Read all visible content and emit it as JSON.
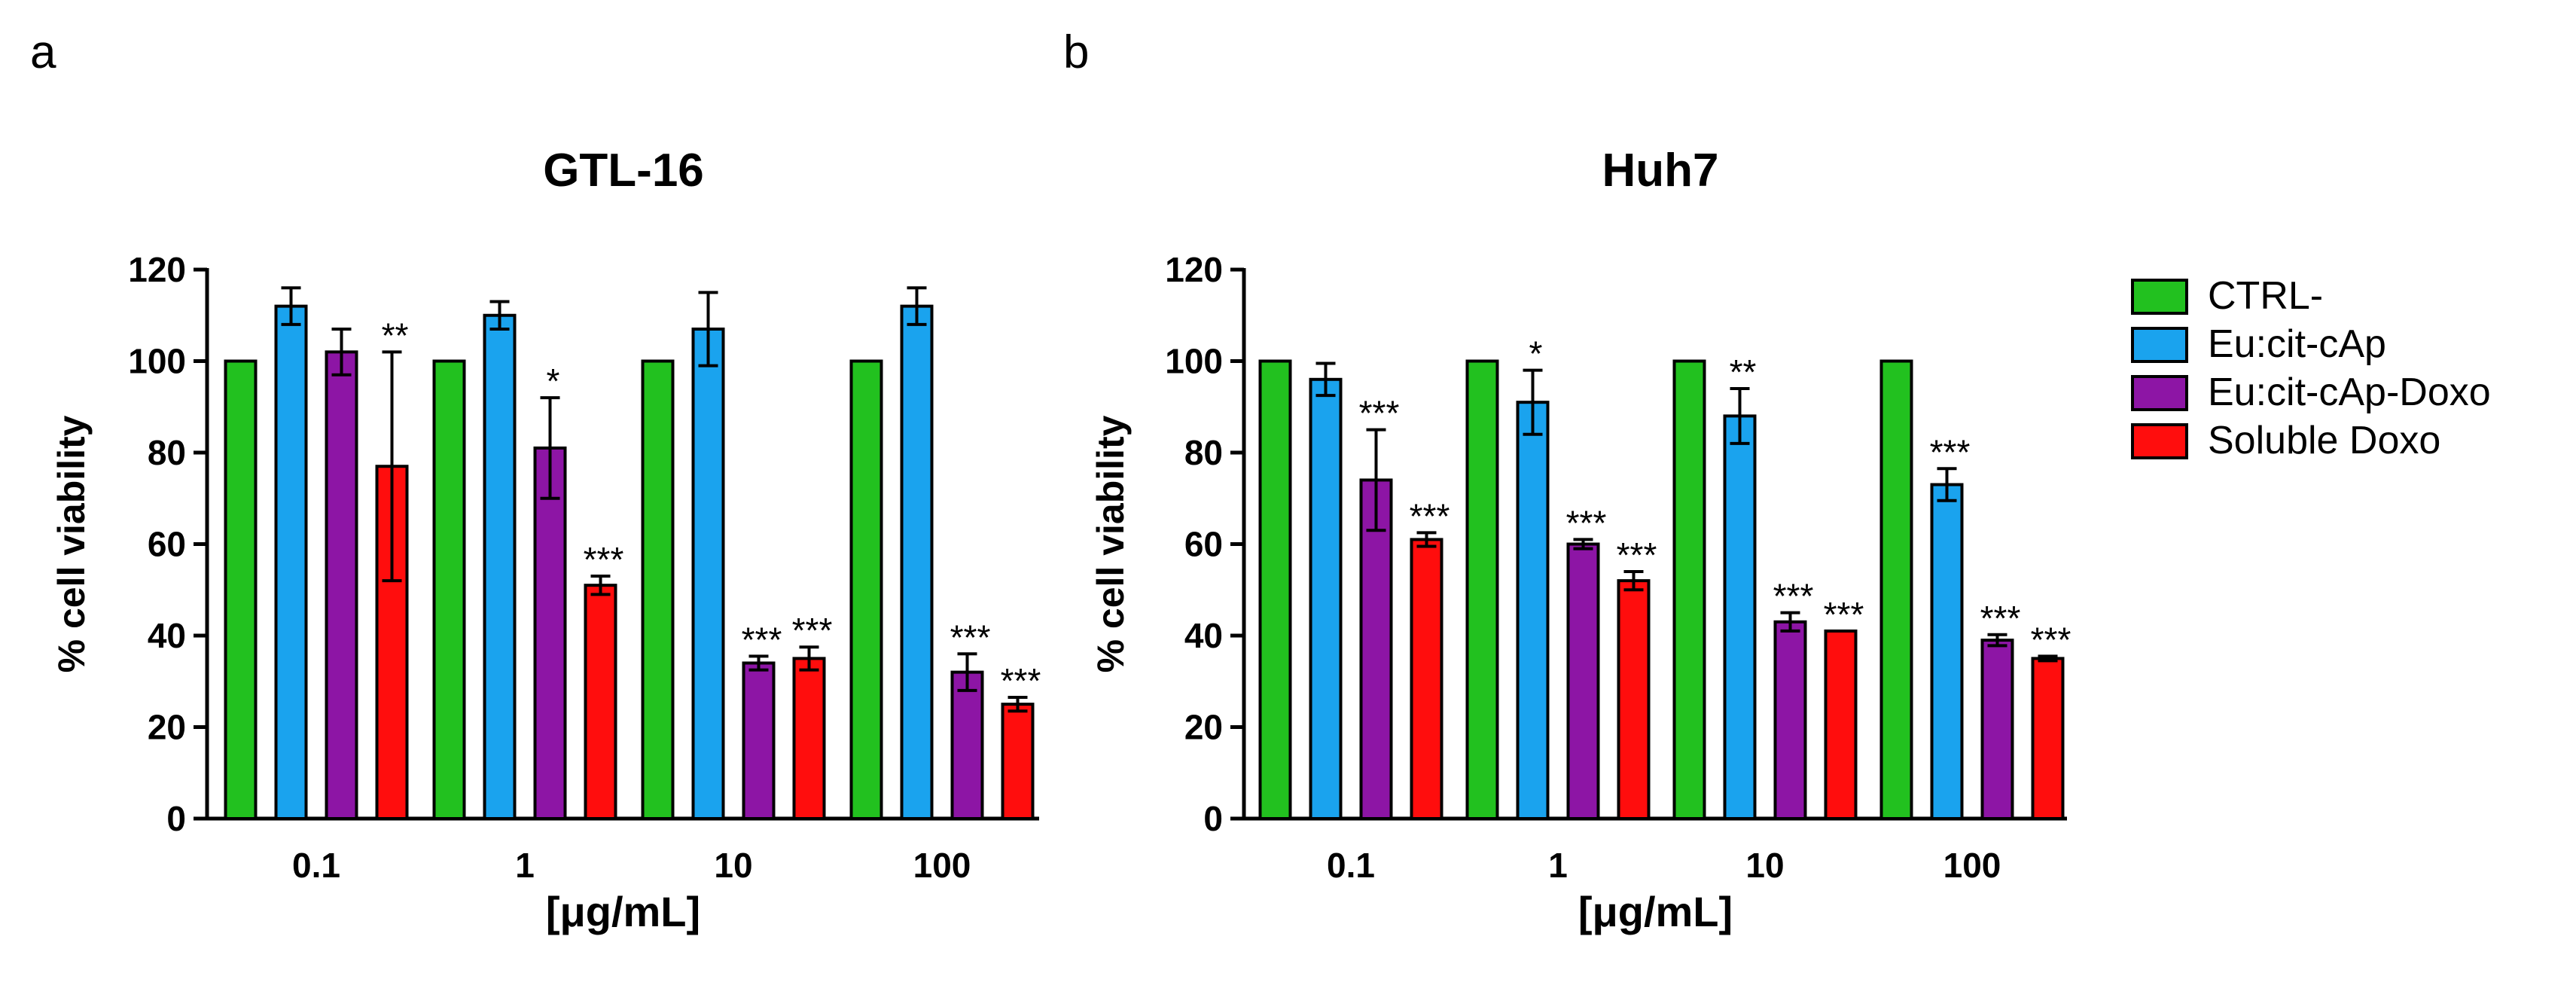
{
  "chart_data": [
    {
      "type": "bar",
      "panel": "a",
      "title": "GTL-16",
      "xlabel": "[μg/mL]",
      "ylabel": "% cell viability",
      "ylim": [
        0,
        120
      ],
      "yticks": [
        0,
        20,
        40,
        60,
        80,
        100,
        120
      ],
      "categories": [
        "0.1",
        "1",
        "10",
        "100"
      ],
      "series": [
        {
          "name": "CTRL-",
          "color": "#22c11f",
          "values": [
            100,
            100,
            100,
            100
          ],
          "errors": [
            0,
            0,
            0,
            0
          ],
          "significance": [
            "",
            "",
            "",
            ""
          ]
        },
        {
          "name": "Eu:cit-cAp",
          "color": "#1aa3ee",
          "values": [
            112,
            110,
            107,
            112
          ],
          "errors": [
            4,
            3,
            8,
            4
          ],
          "significance": [
            "",
            "",
            "",
            ""
          ]
        },
        {
          "name": "Eu:cit-cAp-Doxo",
          "color": "#8d15a5",
          "values": [
            102,
            81,
            34,
            32
          ],
          "errors": [
            5,
            11,
            1.5,
            4
          ],
          "significance": [
            "",
            "*",
            "***",
            "***"
          ]
        },
        {
          "name": "Soluble Doxo",
          "color": "#ff0d0d",
          "values": [
            77,
            51,
            35,
            25
          ],
          "errors": [
            25,
            2,
            2.5,
            1.5
          ],
          "significance": [
            "**",
            "***",
            "***",
            "***"
          ]
        }
      ]
    },
    {
      "type": "bar",
      "panel": "b",
      "title": "Huh7",
      "xlabel": "[μg/mL]",
      "ylabel": "% cell viability",
      "ylim": [
        0,
        120
      ],
      "yticks": [
        0,
        20,
        40,
        60,
        80,
        100,
        120
      ],
      "categories": [
        "0.1",
        "1",
        "10",
        "100"
      ],
      "series": [
        {
          "name": "CTRL-",
          "color": "#22c11f",
          "values": [
            100,
            100,
            100,
            100
          ],
          "errors": [
            0,
            0,
            0,
            0
          ],
          "significance": [
            "",
            "",
            "",
            ""
          ]
        },
        {
          "name": "Eu:cit-cAp",
          "color": "#1aa3ee",
          "values": [
            96,
            91,
            88,
            73
          ],
          "errors": [
            3.5,
            7,
            6,
            3.5
          ],
          "significance": [
            "",
            "*",
            "**",
            "***"
          ]
        },
        {
          "name": "Eu:cit-cAp-Doxo",
          "color": "#8d15a5",
          "values": [
            74,
            60,
            43,
            39
          ],
          "errors": [
            11,
            1,
            2,
            1.2
          ],
          "significance": [
            "***",
            "***",
            "***",
            "***"
          ]
        },
        {
          "name": "Soluble Doxo",
          "color": "#ff0d0d",
          "values": [
            61,
            52,
            41,
            35
          ],
          "errors": [
            1.5,
            2,
            0,
            0.5
          ],
          "significance": [
            "***",
            "***",
            "***",
            "***"
          ]
        }
      ]
    }
  ],
  "legend": {
    "placement": "right",
    "entries": [
      "CTRL-",
      "Eu:cit-cAp",
      "Eu:cit-cAp-Doxo",
      "Soluble Doxo"
    ],
    "colors": [
      "#22c11f",
      "#1aa3ee",
      "#8d15a5",
      "#ff0d0d"
    ]
  }
}
